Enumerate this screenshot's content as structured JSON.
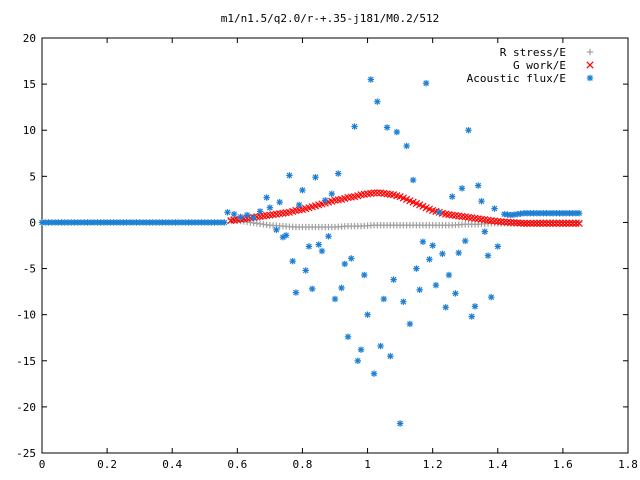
{
  "chart_data": {
    "type": "scatter",
    "title": "m1/n1.5/q2.0/r-+.35-j181/M0.2/512",
    "xlabel": "",
    "ylabel": "",
    "xlim": [
      0,
      1.8
    ],
    "ylim": [
      -25,
      20
    ],
    "xticks": [
      "0",
      "0.2",
      "0.4",
      "0.6",
      "0.8",
      "1",
      "1.2",
      "1.4",
      "1.6",
      "1.8"
    ],
    "yticks": [
      "20",
      "15",
      "10",
      "5",
      "0",
      "-5",
      "-10",
      "-15",
      "-20",
      "-25"
    ],
    "legend_position": "top-right",
    "grid": false,
    "series": [
      {
        "name": "R stress/E",
        "marker": "+",
        "color": "#a0a0a0",
        "points": [
          [
            0.58,
            0.3
          ],
          [
            0.62,
            0.1
          ],
          [
            0.66,
            -0.1
          ],
          [
            0.7,
            -0.3
          ],
          [
            0.74,
            -0.4
          ],
          [
            0.78,
            -0.5
          ],
          [
            0.82,
            -0.5
          ],
          [
            0.86,
            -0.5
          ],
          [
            0.9,
            -0.5
          ],
          [
            0.94,
            -0.4
          ],
          [
            0.98,
            -0.4
          ],
          [
            1.02,
            -0.3
          ],
          [
            1.06,
            -0.3
          ],
          [
            1.1,
            -0.3
          ],
          [
            1.14,
            -0.3
          ],
          [
            1.18,
            -0.3
          ],
          [
            1.22,
            -0.3
          ],
          [
            1.26,
            -0.3
          ],
          [
            1.3,
            -0.2
          ],
          [
            1.34,
            -0.2
          ],
          [
            1.38,
            -0.1
          ],
          [
            1.42,
            -0.1
          ],
          [
            1.46,
            -0.1
          ],
          [
            1.5,
            -0.05
          ],
          [
            1.54,
            0
          ],
          [
            1.58,
            0
          ],
          [
            1.62,
            0
          ],
          [
            1.65,
            0
          ]
        ]
      },
      {
        "name": "G work/E",
        "marker": "x",
        "color": "#ff0000",
        "points": [
          [
            0.58,
            0.2
          ],
          [
            0.6,
            0.3
          ],
          [
            0.62,
            0.4
          ],
          [
            0.64,
            0.5
          ],
          [
            0.66,
            0.6
          ],
          [
            0.68,
            0.7
          ],
          [
            0.7,
            0.8
          ],
          [
            0.72,
            0.9
          ],
          [
            0.74,
            1.0
          ],
          [
            0.76,
            1.1
          ],
          [
            0.78,
            1.3
          ],
          [
            0.8,
            1.4
          ],
          [
            0.82,
            1.6
          ],
          [
            0.84,
            1.8
          ],
          [
            0.86,
            2.0
          ],
          [
            0.88,
            2.2
          ],
          [
            0.9,
            2.4
          ],
          [
            0.92,
            2.5
          ],
          [
            0.94,
            2.7
          ],
          [
            0.96,
            2.8
          ],
          [
            0.98,
            3.0
          ],
          [
            1.0,
            3.1
          ],
          [
            1.02,
            3.2
          ],
          [
            1.04,
            3.2
          ],
          [
            1.06,
            3.1
          ],
          [
            1.08,
            3.0
          ],
          [
            1.1,
            2.8
          ],
          [
            1.12,
            2.5
          ],
          [
            1.14,
            2.2
          ],
          [
            1.16,
            1.9
          ],
          [
            1.18,
            1.6
          ],
          [
            1.2,
            1.3
          ],
          [
            1.22,
            1.1
          ],
          [
            1.24,
            0.9
          ],
          [
            1.26,
            0.8
          ],
          [
            1.28,
            0.7
          ],
          [
            1.3,
            0.6
          ],
          [
            1.32,
            0.5
          ],
          [
            1.34,
            0.4
          ],
          [
            1.36,
            0.3
          ],
          [
            1.38,
            0.2
          ],
          [
            1.4,
            0.1
          ],
          [
            1.42,
            0.05
          ],
          [
            1.44,
            0
          ],
          [
            1.46,
            -0.05
          ],
          [
            1.48,
            -0.1
          ],
          [
            1.5,
            -0.1
          ],
          [
            1.54,
            -0.1
          ],
          [
            1.58,
            -0.1
          ],
          [
            1.62,
            -0.1
          ],
          [
            1.65,
            -0.1
          ]
        ]
      },
      {
        "name": "Acoustic flux/E",
        "marker": "*",
        "color": "#1e7fd2",
        "points": [
          [
            0,
            0
          ],
          [
            0.04,
            0
          ],
          [
            0.08,
            0
          ],
          [
            0.12,
            0
          ],
          [
            0.16,
            0
          ],
          [
            0.2,
            0
          ],
          [
            0.24,
            0
          ],
          [
            0.28,
            0
          ],
          [
            0.32,
            0
          ],
          [
            0.36,
            0
          ],
          [
            0.4,
            0
          ],
          [
            0.44,
            0
          ],
          [
            0.48,
            0
          ],
          [
            0.52,
            0
          ],
          [
            0.56,
            0
          ],
          [
            0.57,
            1.1
          ],
          [
            0.59,
            0.9
          ],
          [
            0.61,
            0.6
          ],
          [
            0.63,
            0.8
          ],
          [
            0.65,
            0.5
          ],
          [
            0.67,
            1.2
          ],
          [
            0.69,
            2.7
          ],
          [
            0.7,
            1.6
          ],
          [
            0.72,
            -0.8
          ],
          [
            0.73,
            2.2
          ],
          [
            0.74,
            -1.6
          ],
          [
            0.75,
            -1.4
          ],
          [
            0.76,
            5.1
          ],
          [
            0.77,
            -4.2
          ],
          [
            0.78,
            -7.6
          ],
          [
            0.79,
            1.9
          ],
          [
            0.8,
            3.5
          ],
          [
            0.81,
            -5.2
          ],
          [
            0.82,
            -2.6
          ],
          [
            0.83,
            -7.2
          ],
          [
            0.84,
            4.9
          ],
          [
            0.85,
            -2.4
          ],
          [
            0.86,
            -3.1
          ],
          [
            0.87,
            2.4
          ],
          [
            0.88,
            -1.5
          ],
          [
            0.89,
            3.1
          ],
          [
            0.9,
            -8.3
          ],
          [
            0.91,
            5.3
          ],
          [
            0.92,
            -7.1
          ],
          [
            0.93,
            -4.5
          ],
          [
            0.94,
            -12.4
          ],
          [
            0.95,
            -3.9
          ],
          [
            0.96,
            10.4
          ],
          [
            0.97,
            -15.0
          ],
          [
            0.98,
            -13.8
          ],
          [
            0.99,
            -5.7
          ],
          [
            1.0,
            -10.0
          ],
          [
            1.01,
            15.5
          ],
          [
            1.02,
            -16.4
          ],
          [
            1.03,
            13.1
          ],
          [
            1.04,
            -13.4
          ],
          [
            1.05,
            -8.3
          ],
          [
            1.06,
            10.3
          ],
          [
            1.07,
            -14.5
          ],
          [
            1.08,
            -6.2
          ],
          [
            1.09,
            9.8
          ],
          [
            1.1,
            -21.8
          ],
          [
            1.11,
            -8.6
          ],
          [
            1.12,
            8.3
          ],
          [
            1.13,
            -11.0
          ],
          [
            1.14,
            4.6
          ],
          [
            1.15,
            -5.0
          ],
          [
            1.16,
            -7.3
          ],
          [
            1.17,
            -2.1
          ],
          [
            1.18,
            15.1
          ],
          [
            1.19,
            -4.0
          ],
          [
            1.2,
            -2.5
          ],
          [
            1.21,
            -6.8
          ],
          [
            1.22,
            1.1
          ],
          [
            1.23,
            -3.4
          ],
          [
            1.24,
            -9.2
          ],
          [
            1.25,
            -5.7
          ],
          [
            1.26,
            2.8
          ],
          [
            1.27,
            -7.7
          ],
          [
            1.28,
            -3.3
          ],
          [
            1.29,
            3.7
          ],
          [
            1.3,
            -2.0
          ],
          [
            1.31,
            10.0
          ],
          [
            1.32,
            -10.2
          ],
          [
            1.33,
            -9.1
          ],
          [
            1.34,
            4.0
          ],
          [
            1.35,
            2.3
          ],
          [
            1.36,
            -1.0
          ],
          [
            1.37,
            -3.6
          ],
          [
            1.38,
            -8.1
          ],
          [
            1.39,
            1.5
          ],
          [
            1.4,
            -2.6
          ],
          [
            1.42,
            0.9
          ],
          [
            1.44,
            0.8
          ],
          [
            1.46,
            0.9
          ],
          [
            1.48,
            1.0
          ],
          [
            1.5,
            1.0
          ],
          [
            1.52,
            1.0
          ],
          [
            1.54,
            1.0
          ],
          [
            1.56,
            1.0
          ],
          [
            1.58,
            1.0
          ],
          [
            1.6,
            1.0
          ],
          [
            1.62,
            1.0
          ],
          [
            1.64,
            1.0
          ],
          [
            1.65,
            1.0
          ]
        ]
      }
    ]
  }
}
